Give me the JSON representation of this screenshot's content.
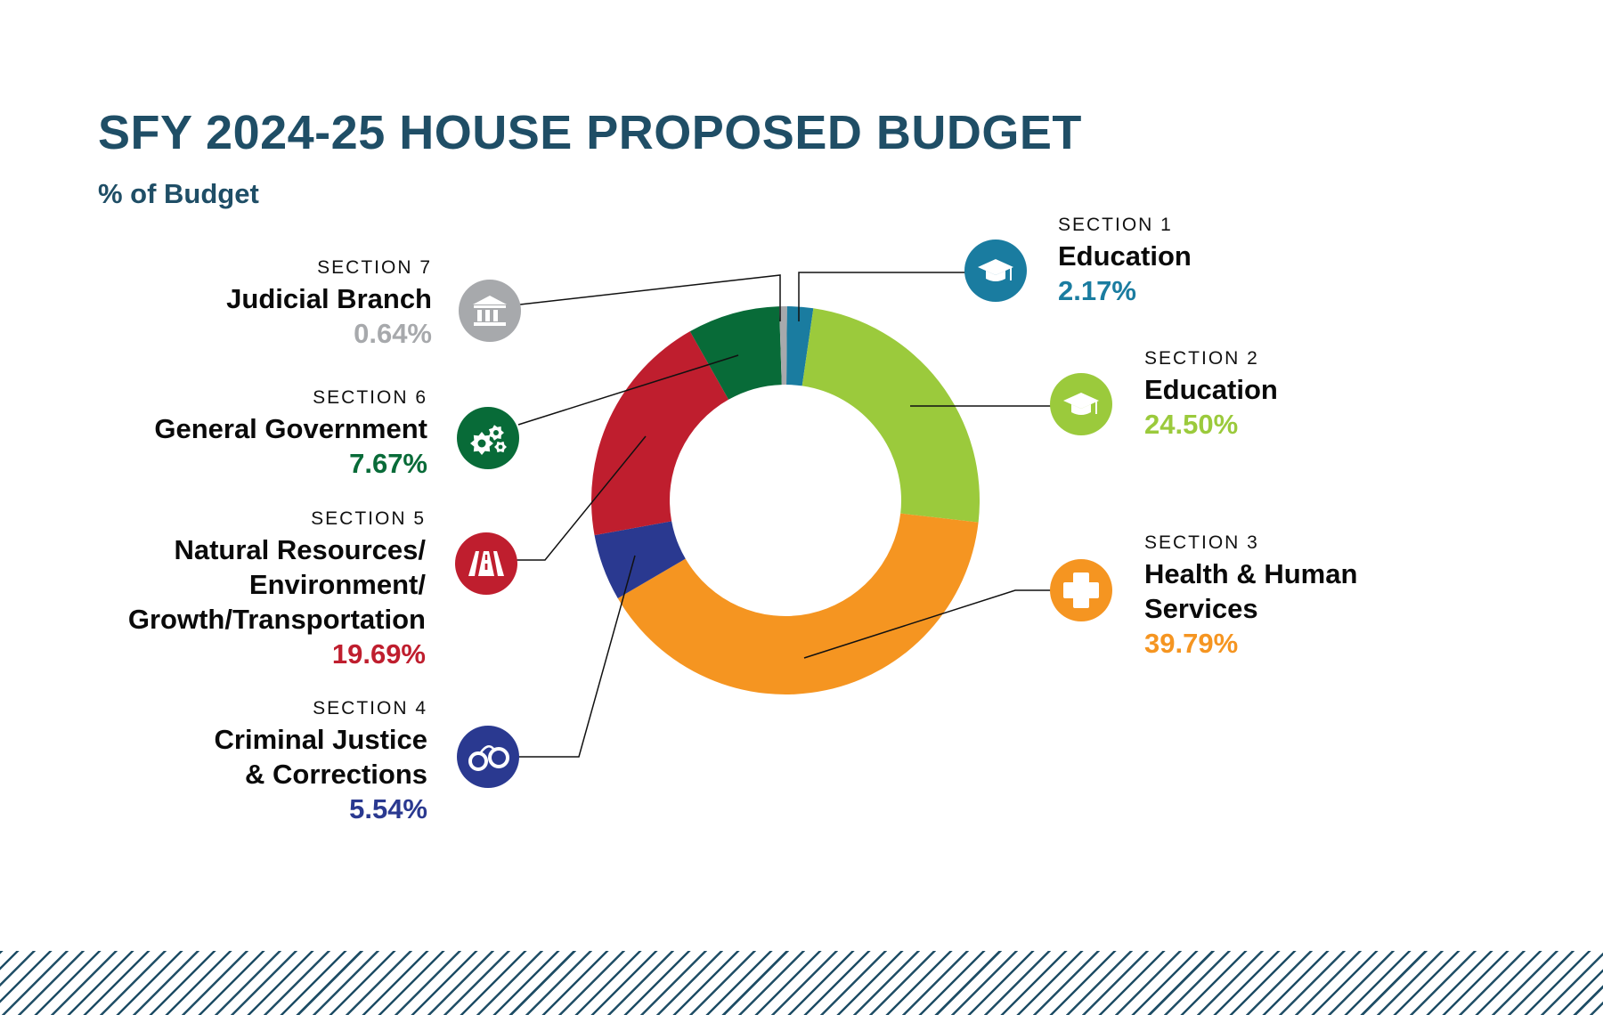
{
  "title": "SFY 2024-25 HOUSE PROPOSED BUDGET",
  "subtitle": "% of Budget",
  "chart_data": {
    "type": "pie",
    "title": "SFY 2024-25 HOUSE PROPOSED BUDGET",
    "subtitle": "% of Budget",
    "unit": "%",
    "slices": [
      {
        "section": "SECTION 1",
        "name": "Education",
        "value": 2.17,
        "label": "2.17%",
        "color": "#1a7ca0",
        "icon": "graduation-cap-icon"
      },
      {
        "section": "SECTION 2",
        "name": "Education",
        "value": 24.5,
        "label": "24.50%",
        "color": "#9bca3c",
        "icon": "graduation-cap-icon"
      },
      {
        "section": "SECTION 3",
        "name": "Health & Human Services",
        "value": 39.79,
        "label": "39.79%",
        "color": "#f59521",
        "icon": "medical-cross-icon"
      },
      {
        "section": "SECTION 4",
        "name": "Criminal Justice & Corrections",
        "value": 5.54,
        "label": "5.54%",
        "color": "#2a3990",
        "icon": "handcuffs-icon"
      },
      {
        "section": "SECTION 5",
        "name": "Natural Resources/ Environment/ Growth/Transportation",
        "value": 19.69,
        "label": "19.69%",
        "color": "#bf1e2e",
        "icon": "road-icon"
      },
      {
        "section": "SECTION 6",
        "name": "General Government",
        "value": 7.67,
        "label": "7.67%",
        "color": "#086b38",
        "icon": "gears-icon"
      },
      {
        "section": "SECTION 7",
        "name": "Judicial Branch",
        "value": 0.64,
        "label": "0.64%",
        "color": "#a7a9ac",
        "icon": "courthouse-icon"
      }
    ]
  }
}
